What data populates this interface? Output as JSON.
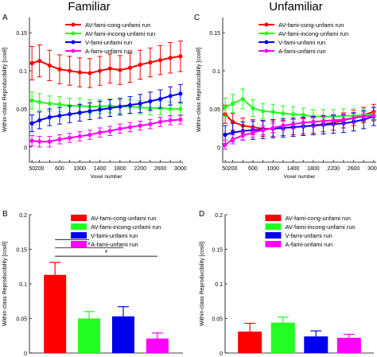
{
  "titles": {
    "left": "Familiar",
    "right": "Unfamiliar"
  },
  "colors": {
    "red": "#ff0000",
    "green": "#22ff22",
    "blue": "#0000ee",
    "magenta": "#ff00ff"
  },
  "chart_data": [
    {
      "panel": "A",
      "type": "line",
      "title": "Familiar",
      "xlabel": "Voxel number",
      "ylabel": "Within-class Reproducibility [cosθ]",
      "xlim": [
        0,
        3050
      ],
      "ylim": [
        -0.02,
        0.17
      ],
      "xticks": [
        50,
        200,
        400,
        600,
        800,
        1000,
        1200,
        1400,
        1600,
        1800,
        2000,
        2200,
        2400,
        2600,
        2800,
        3000
      ],
      "xtick_labels": [
        "50",
        "200",
        "600",
        "1000",
        "1400",
        "1800",
        "2200",
        "2600",
        "3000"
      ],
      "xtick_label_values": [
        50,
        200,
        600,
        1000,
        1400,
        1800,
        2200,
        2600,
        3000
      ],
      "yticks": [
        0,
        0.05,
        0.1,
        0.15
      ],
      "ytick_labels": [
        "0",
        "0.05",
        "0.1",
        "0.15"
      ],
      "x": [
        50,
        200,
        400,
        600,
        800,
        1000,
        1200,
        1400,
        1600,
        1800,
        2000,
        2200,
        2400,
        2600,
        2800,
        3000
      ],
      "legend": "top",
      "series": [
        {
          "name": "AV-fami-cong-unfami run",
          "color": "#ff0000",
          "values": [
            0.11,
            0.113,
            0.107,
            0.102,
            0.1,
            0.098,
            0.097,
            0.1,
            0.103,
            0.101,
            0.104,
            0.108,
            0.111,
            0.114,
            0.117,
            0.119
          ],
          "err": [
            0.022,
            0.021,
            0.02,
            0.019,
            0.019,
            0.019,
            0.019,
            0.019,
            0.019,
            0.019,
            0.019,
            0.019,
            0.019,
            0.019,
            0.02,
            0.02
          ]
        },
        {
          "name": "AV-fami-incong-unfami run",
          "color": "#22ff22",
          "values": [
            0.061,
            0.059,
            0.057,
            0.056,
            0.054,
            0.054,
            0.053,
            0.053,
            0.054,
            0.053,
            0.053,
            0.052,
            0.051,
            0.051,
            0.05,
            0.05
          ],
          "err": [
            0.011,
            0.011,
            0.01,
            0.01,
            0.01,
            0.01,
            0.009,
            0.009,
            0.009,
            0.009,
            0.009,
            0.009,
            0.009,
            0.009,
            0.009,
            0.009
          ]
        },
        {
          "name": "V-fami-unfami run",
          "color": "#0000ee",
          "values": [
            0.031,
            0.035,
            0.039,
            0.041,
            0.043,
            0.045,
            0.047,
            0.049,
            0.051,
            0.053,
            0.055,
            0.057,
            0.06,
            0.063,
            0.067,
            0.07
          ],
          "err": [
            0.011,
            0.011,
            0.011,
            0.011,
            0.011,
            0.011,
            0.011,
            0.011,
            0.011,
            0.011,
            0.011,
            0.012,
            0.012,
            0.012,
            0.012,
            0.012
          ]
        },
        {
          "name": "A-fami-unfami run",
          "color": "#ff00ff",
          "values": [
            0.008,
            0.007,
            0.007,
            0.01,
            0.012,
            0.014,
            0.016,
            0.019,
            0.021,
            0.024,
            0.026,
            0.028,
            0.03,
            0.033,
            0.035,
            0.036
          ],
          "err": [
            0.007,
            0.007,
            0.007,
            0.006,
            0.006,
            0.006,
            0.006,
            0.006,
            0.006,
            0.006,
            0.006,
            0.006,
            0.006,
            0.006,
            0.006,
            0.006
          ]
        }
      ]
    },
    {
      "panel": "C",
      "type": "line",
      "title": "Unfamiliar",
      "xlabel": "Voxel number",
      "ylabel": "Within-class Reproducibility [cosθ]",
      "xlim": [
        0,
        3050
      ],
      "ylim": [
        -0.02,
        0.17
      ],
      "xticks": [
        50,
        200,
        400,
        600,
        800,
        1000,
        1200,
        1400,
        1600,
        1800,
        2000,
        2200,
        2400,
        2600,
        2800,
        3000
      ],
      "xtick_labels": [
        "50",
        "200",
        "600",
        "1000",
        "1400",
        "1800",
        "2200",
        "2600",
        "3000"
      ],
      "xtick_label_values": [
        50,
        200,
        600,
        1000,
        1400,
        1800,
        2200,
        2600,
        3000
      ],
      "yticks": [
        0,
        0.05,
        0.1,
        0.15
      ],
      "ytick_labels": [
        "0",
        "0.05",
        "0.1",
        "0.15"
      ],
      "x": [
        50,
        200,
        400,
        600,
        800,
        1000,
        1200,
        1400,
        1600,
        1800,
        2000,
        2200,
        2400,
        2600,
        2800,
        3000
      ],
      "legend": "top",
      "series": [
        {
          "name": "AV-fami-cong-unfami run",
          "color": "#ff0000",
          "values": [
            0.043,
            0.033,
            0.028,
            0.026,
            0.024,
            0.024,
            0.025,
            0.026,
            0.027,
            0.028,
            0.03,
            0.032,
            0.035,
            0.038,
            0.042,
            0.046
          ],
          "err": [
            0.012,
            0.011,
            0.01,
            0.01,
            0.01,
            0.01,
            0.01,
            0.01,
            0.01,
            0.01,
            0.01,
            0.01,
            0.01,
            0.01,
            0.01,
            0.01
          ]
        },
        {
          "name": "AV-fami-incong-unfami run",
          "color": "#22ff22",
          "values": [
            0.052,
            0.057,
            0.063,
            0.051,
            0.047,
            0.046,
            0.044,
            0.043,
            0.042,
            0.04,
            0.04,
            0.04,
            0.041,
            0.041,
            0.042,
            0.043
          ],
          "err": [
            0.012,
            0.012,
            0.013,
            0.011,
            0.01,
            0.01,
            0.01,
            0.01,
            0.009,
            0.009,
            0.009,
            0.009,
            0.009,
            0.009,
            0.009,
            0.009
          ]
        },
        {
          "name": "V-fami-unfami run",
          "color": "#0000ee",
          "values": [
            0.016,
            0.019,
            0.021,
            0.022,
            0.023,
            0.024,
            0.025,
            0.026,
            0.027,
            0.028,
            0.029,
            0.03,
            0.031,
            0.033,
            0.036,
            0.04
          ],
          "err": [
            0.012,
            0.012,
            0.012,
            0.012,
            0.012,
            0.012,
            0.012,
            0.012,
            0.012,
            0.012,
            0.012,
            0.012,
            0.012,
            0.012,
            0.012,
            0.012
          ]
        },
        {
          "name": "A-fami-unfami run",
          "color": "#ff00ff",
          "values": [
            0.003,
            0.01,
            0.015,
            0.019,
            0.022,
            0.025,
            0.028,
            0.03,
            0.032,
            0.033,
            0.034,
            0.035,
            0.036,
            0.038,
            0.04,
            0.041
          ],
          "err": [
            0.006,
            0.006,
            0.006,
            0.006,
            0.006,
            0.006,
            0.006,
            0.006,
            0.006,
            0.006,
            0.006,
            0.006,
            0.006,
            0.006,
            0.006,
            0.006
          ]
        }
      ]
    },
    {
      "panel": "B",
      "type": "bar",
      "ylabel": "Within-class Reproducibility [cosθ]",
      "ylim": [
        0,
        0.2
      ],
      "yticks": [
        0,
        0.05,
        0.1,
        0.15,
        0.2
      ],
      "ytick_labels": [
        "0",
        "0.05",
        "0.1",
        "0.15",
        "0.2"
      ],
      "categories": [
        "AV-fami-cong-unfami run",
        "AV-fami-incong-unfami run",
        "V-fami-unfami run",
        "A-fami-unfami run"
      ],
      "colors": [
        "#ff0000",
        "#22ff22",
        "#0000ee",
        "#ff00ff"
      ],
      "values": [
        0.113,
        0.05,
        0.053,
        0.021
      ],
      "err": [
        0.018,
        0.01,
        0.014,
        0.008
      ],
      "legend": "top-right",
      "significance": [
        {
          "from": 0,
          "to": 1,
          "label": "*"
        },
        {
          "from": 0,
          "to": 2,
          "label": "*"
        },
        {
          "from": 0,
          "to": 3,
          "label": "*"
        }
      ]
    },
    {
      "panel": "D",
      "type": "bar",
      "ylabel": "Within-class Reproducibility [cosθ]",
      "ylim": [
        0,
        0.2
      ],
      "yticks": [
        0,
        0.05,
        0.1,
        0.15,
        0.2
      ],
      "ytick_labels": [
        "0",
        "0.05",
        "0.1",
        "0.15",
        "0.2"
      ],
      "categories": [
        "AV-fami-cong-unfami run",
        "AV-fami-incong-unfami run",
        "V-fami-unfami run",
        "A-fami-unfami run"
      ],
      "colors": [
        "#ff0000",
        "#22ff22",
        "#0000ee",
        "#ff00ff"
      ],
      "values": [
        0.031,
        0.044,
        0.024,
        0.022
      ],
      "err": [
        0.012,
        0.008,
        0.008,
        0.005
      ],
      "legend": "top-right",
      "significance": []
    }
  ]
}
